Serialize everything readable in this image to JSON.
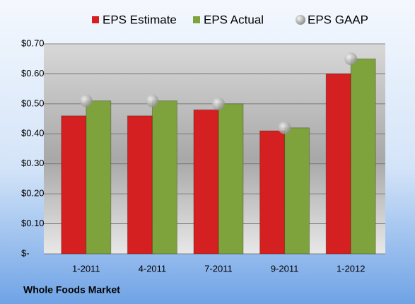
{
  "chart_data": {
    "type": "bar",
    "footer": "Whole Foods Market",
    "categories": [
      "1-2011",
      "4-2011",
      "7-2011",
      "9-2011",
      "1-2012"
    ],
    "series": [
      {
        "name": "EPS Estimate",
        "color": "#d42020",
        "values": [
          0.46,
          0.46,
          0.48,
          0.41,
          0.6
        ]
      },
      {
        "name": "EPS Actual",
        "color": "#7fa33c",
        "values": [
          0.51,
          0.51,
          0.5,
          0.42,
          0.65
        ]
      },
      {
        "name": "EPS GAAP",
        "color": "#b4b4b4",
        "type": "scatter",
        "values": [
          0.51,
          0.51,
          0.5,
          0.42,
          0.65
        ]
      }
    ],
    "ylim": [
      0,
      0.7
    ],
    "yticks": [
      {
        "value": 0,
        "label": "$-"
      },
      {
        "value": 0.1,
        "label": "$0.10"
      },
      {
        "value": 0.2,
        "label": "$0.20"
      },
      {
        "value": 0.3,
        "label": "$0.30"
      },
      {
        "value": 0.4,
        "label": "$0.40"
      },
      {
        "value": 0.5,
        "label": "$0.50"
      },
      {
        "value": 0.6,
        "label": "$0.60"
      },
      {
        "value": 0.7,
        "label": "$0.70"
      }
    ],
    "grid": true,
    "legend": "top"
  }
}
